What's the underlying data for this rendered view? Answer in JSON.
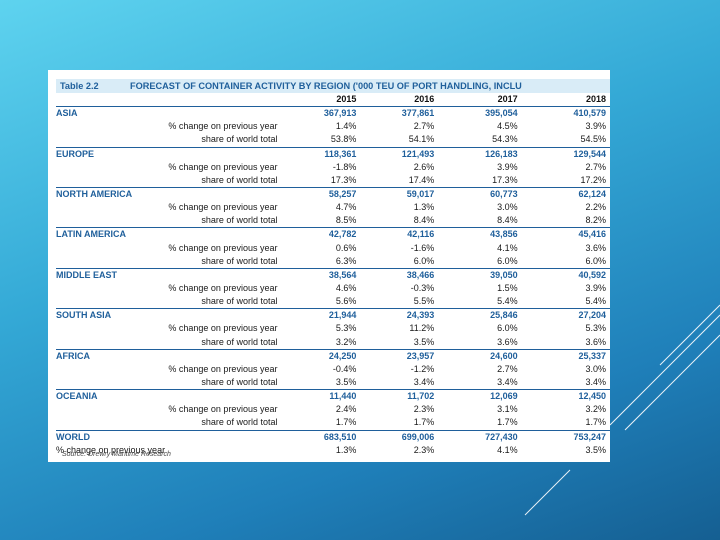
{
  "table": {
    "label": "Table 2.2",
    "title": "FORECAST OF CONTAINER ACTIVITY BY REGION ('000 TEU OF PORT HANDLING, INCLU",
    "years": [
      "2015",
      "2016",
      "2017",
      "2018"
    ],
    "regions": [
      {
        "name": "ASIA",
        "values": [
          "367,913",
          "377,861",
          "395,054",
          "410,579"
        ],
        "change_label": "% change on previous year",
        "change": [
          "1.4%",
          "2.7%",
          "4.5%",
          "3.9%"
        ],
        "share_label": "share of world total",
        "share": [
          "53.8%",
          "54.1%",
          "54.3%",
          "54.5%"
        ]
      },
      {
        "name": "EUROPE",
        "values": [
          "118,361",
          "121,493",
          "126,183",
          "129,544"
        ],
        "change_label": "% change on previous year",
        "change": [
          "-1.8%",
          "2.6%",
          "3.9%",
          "2.7%"
        ],
        "share_label": "share of world total",
        "share": [
          "17.3%",
          "17.4%",
          "17.3%",
          "17.2%"
        ]
      },
      {
        "name": "NORTH AMERICA",
        "values": [
          "58,257",
          "59,017",
          "60,773",
          "62,124"
        ],
        "change_label": "% change on previous year",
        "change": [
          "4.7%",
          "1.3%",
          "3.0%",
          "2.2%"
        ],
        "share_label": "share of world total",
        "share": [
          "8.5%",
          "8.4%",
          "8.4%",
          "8.2%"
        ]
      },
      {
        "name": "LATIN AMERICA",
        "values": [
          "42,782",
          "42,116",
          "43,856",
          "45,416"
        ],
        "change_label": "% change on previous year",
        "change": [
          "0.6%",
          "-1.6%",
          "4.1%",
          "3.6%"
        ],
        "share_label": "share of world total",
        "share": [
          "6.3%",
          "6.0%",
          "6.0%",
          "6.0%"
        ]
      },
      {
        "name": "MIDDLE EAST",
        "values": [
          "38,564",
          "38,466",
          "39,050",
          "40,592"
        ],
        "change_label": "% change on previous year",
        "change": [
          "4.6%",
          "-0.3%",
          "1.5%",
          "3.9%"
        ],
        "share_label": "share of world total",
        "share": [
          "5.6%",
          "5.5%",
          "5.4%",
          "5.4%"
        ]
      },
      {
        "name": "SOUTH ASIA",
        "values": [
          "21,944",
          "24,393",
          "25,846",
          "27,204"
        ],
        "change_label": "% change on previous year",
        "change": [
          "5.3%",
          "11.2%",
          "6.0%",
          "5.3%"
        ],
        "share_label": "share of world total",
        "share": [
          "3.2%",
          "3.5%",
          "3.6%",
          "3.6%"
        ]
      },
      {
        "name": "AFRICA",
        "values": [
          "24,250",
          "23,957",
          "24,600",
          "25,337"
        ],
        "change_label": "% change on previous year",
        "change": [
          "-0.4%",
          "-1.2%",
          "2.7%",
          "3.0%"
        ],
        "share_label": "share of world total",
        "share": [
          "3.5%",
          "3.4%",
          "3.4%",
          "3.4%"
        ]
      },
      {
        "name": "OCEANIA",
        "values": [
          "11,440",
          "11,702",
          "12,069",
          "12,450"
        ],
        "change_label": "% change on previous year",
        "change": [
          "2.4%",
          "2.3%",
          "3.1%",
          "3.2%"
        ],
        "share_label": "share of world total",
        "share": [
          "1.7%",
          "1.7%",
          "1.7%",
          "1.7%"
        ]
      }
    ],
    "world": {
      "name": "WORLD",
      "values": [
        "683,510",
        "699,006",
        "727,430",
        "753,247"
      ],
      "change_label": "% change on previous year",
      "change": [
        "1.3%",
        "2.3%",
        "4.1%",
        "3.5%"
      ]
    },
    "source": "Source: Drewry Maritime Research"
  }
}
